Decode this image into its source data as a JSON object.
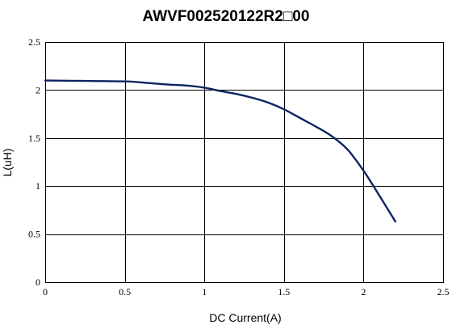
{
  "chart_data": {
    "type": "line",
    "title": "AWVF002520122R2□00",
    "xlabel": "DC Current(A)",
    "ylabel": "L(uH)",
    "xlim": [
      0,
      2.5
    ],
    "ylim": [
      0,
      2.5
    ],
    "xticks": [
      0,
      0.5,
      1,
      1.5,
      2,
      2.5
    ],
    "yticks": [
      0,
      0.5,
      1,
      1.5,
      2,
      2.5
    ],
    "xtick_labels": [
      "0",
      "0.5",
      "1",
      "1.5",
      "2",
      "2.5"
    ],
    "ytick_labels": [
      "0",
      "0.5",
      "1",
      "1.5",
      "2",
      "2.5"
    ],
    "grid": true,
    "legend": false,
    "series": [
      {
        "color": "#0c2461",
        "x": [
          0,
          0.25,
          0.5,
          0.6,
          0.75,
          0.9,
          1.0,
          1.1,
          1.2,
          1.3,
          1.4,
          1.5,
          1.6,
          1.7,
          1.8,
          1.9,
          2.0,
          2.1,
          2.2
        ],
        "y": [
          2.1,
          2.095,
          2.09,
          2.08,
          2.06,
          2.045,
          2.025,
          1.99,
          1.96,
          1.92,
          1.87,
          1.8,
          1.71,
          1.62,
          1.52,
          1.38,
          1.16,
          0.9,
          0.63
        ]
      }
    ]
  }
}
